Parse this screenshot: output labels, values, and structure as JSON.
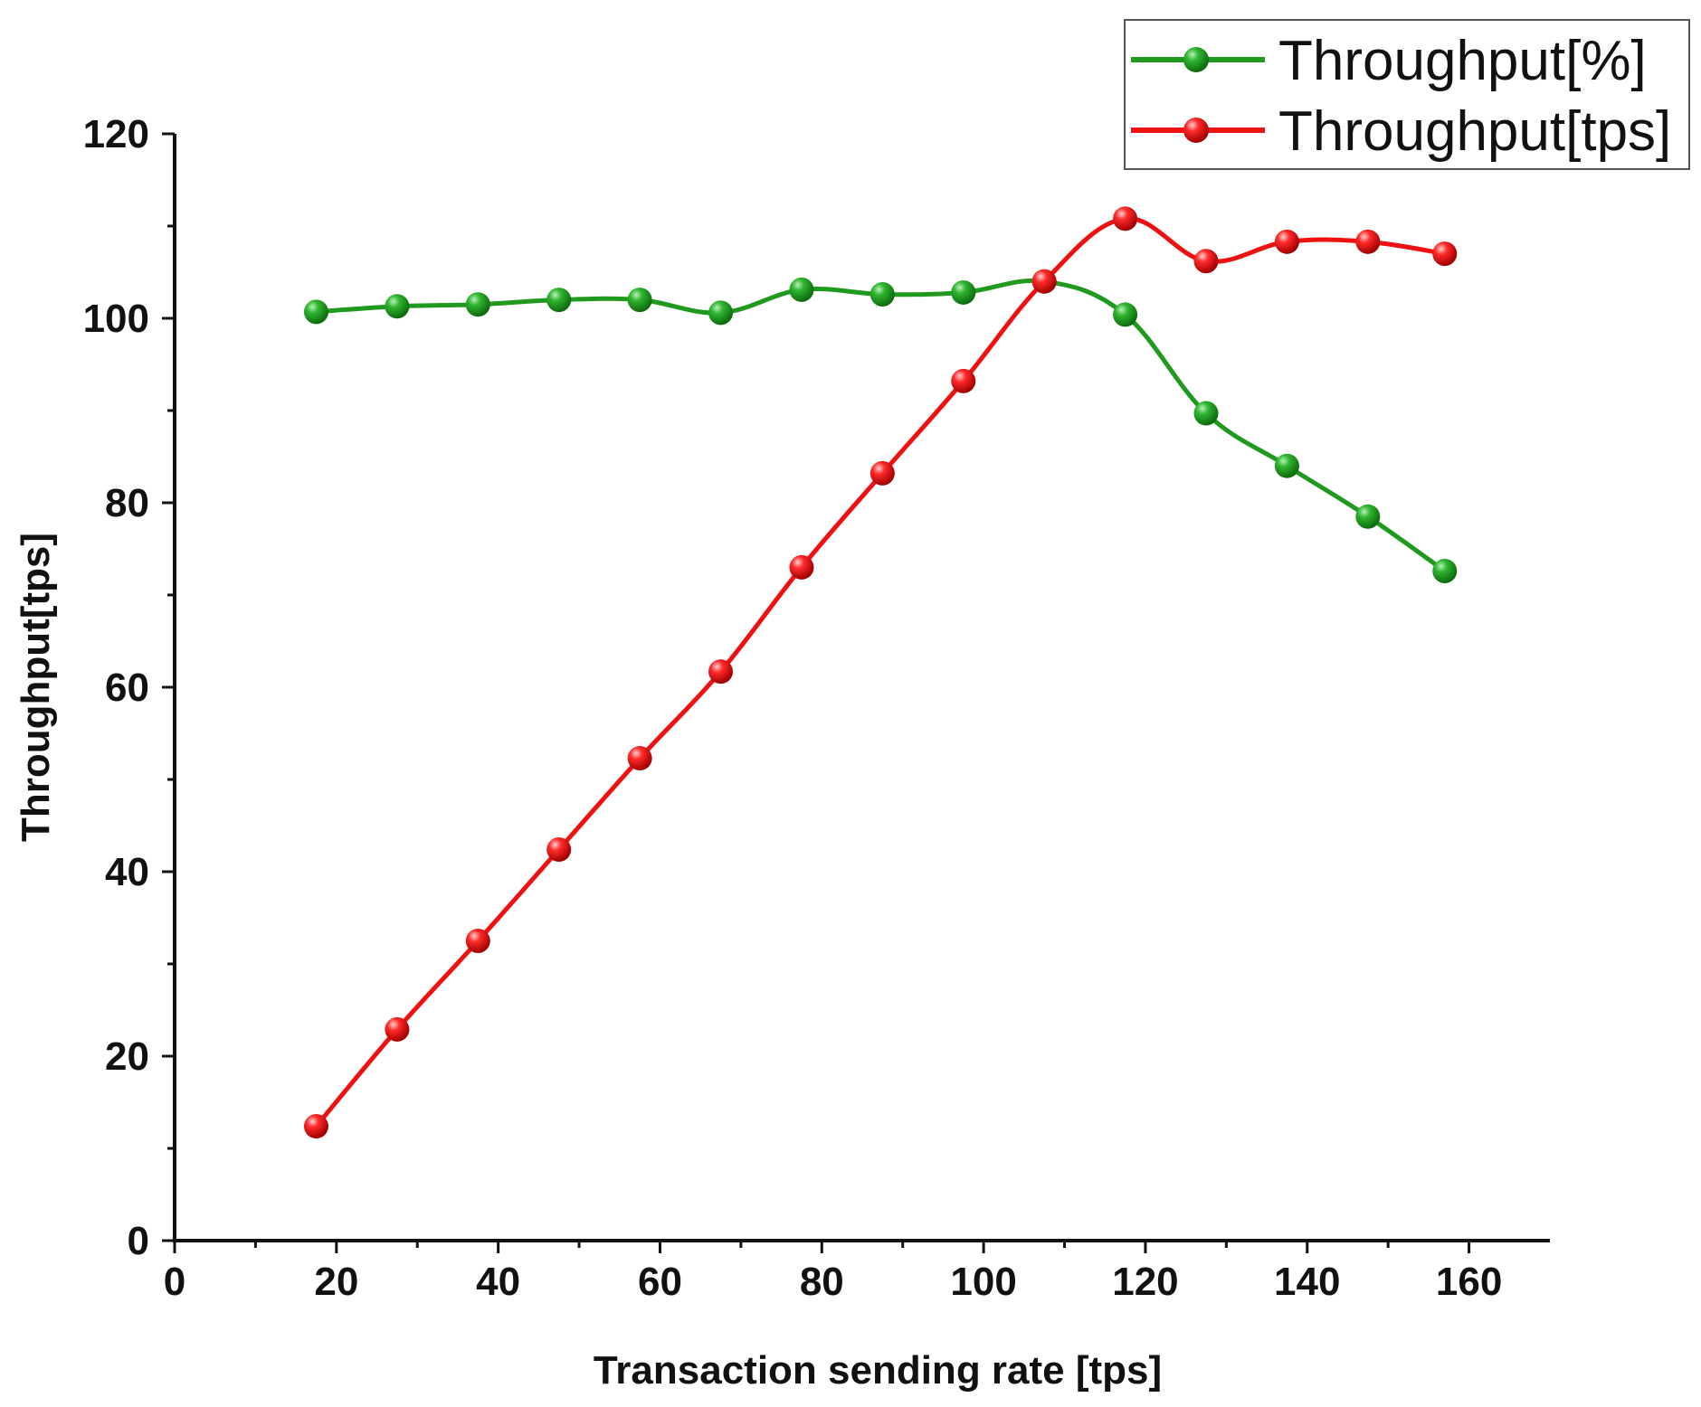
{
  "chart_data": {
    "type": "line",
    "xlabel": "Transaction sending rate [tps]",
    "ylabel": "Throughput[tps]",
    "xlim": [
      0,
      170
    ],
    "ylim": [
      0,
      120
    ],
    "x_ticks": [
      "0",
      "20",
      "40",
      "60",
      "80",
      "100",
      "120",
      "140",
      "160"
    ],
    "y_ticks": [
      "0",
      "20",
      "40",
      "60",
      "80",
      "100",
      "120"
    ],
    "grid": false,
    "legend_position": "top-right",
    "series": [
      {
        "name": "Throughput[%]",
        "color": "#1f9a1f",
        "marker": "circle",
        "x": [
          17.5,
          27.5,
          37.5,
          47.5,
          57.5,
          67.5,
          77.5,
          87.5,
          97.5,
          107.5,
          117.5,
          127.5,
          137.5,
          147.5,
          157
        ],
        "y": [
          100.7,
          101.3,
          101.5,
          102.0,
          102.0,
          100.6,
          103.1,
          102.6,
          102.8,
          104.0,
          100.4,
          89.7,
          84.0,
          78.5,
          72.6
        ]
      },
      {
        "name": "Throughput[tps]",
        "color": "#ee1111",
        "marker": "circle",
        "x": [
          17.5,
          27.5,
          37.5,
          47.5,
          57.5,
          67.5,
          77.5,
          87.5,
          97.5,
          107.5,
          117.5,
          127.5,
          137.5,
          147.5,
          157
        ],
        "y": [
          12.4,
          22.9,
          32.5,
          42.4,
          52.3,
          61.7,
          73.0,
          83.2,
          93.2,
          104.0,
          110.8,
          106.2,
          108.3,
          108.3,
          107.0
        ]
      }
    ]
  }
}
